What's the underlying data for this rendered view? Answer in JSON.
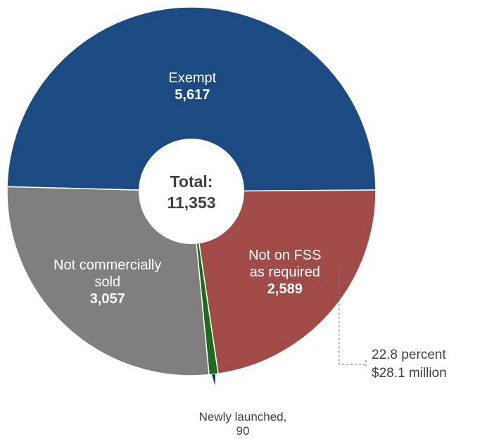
{
  "chart_data": {
    "type": "pie",
    "center_label": "Total:",
    "total": "11,353",
    "slices": [
      {
        "label_lines": [
          "Exempt"
        ],
        "display_value": "5,617",
        "value": 5617,
        "color": "#1b4b82"
      },
      {
        "label_lines": [
          "Not on FSS",
          "as required"
        ],
        "display_value": "2,589",
        "value": 2589,
        "color": "#a14b48"
      },
      {
        "label_lines": [
          "Newly launched,"
        ],
        "display_value": "90",
        "value": 90,
        "color": "#1e6b1e",
        "label_outside": true
      },
      {
        "label_lines": [
          "Not commercially",
          "sold"
        ],
        "display_value": "3,057",
        "value": 3057,
        "color": "#7f7f7f"
      }
    ],
    "callout": {
      "lines": [
        "22.8 percent",
        "$28.1 million"
      ]
    }
  }
}
